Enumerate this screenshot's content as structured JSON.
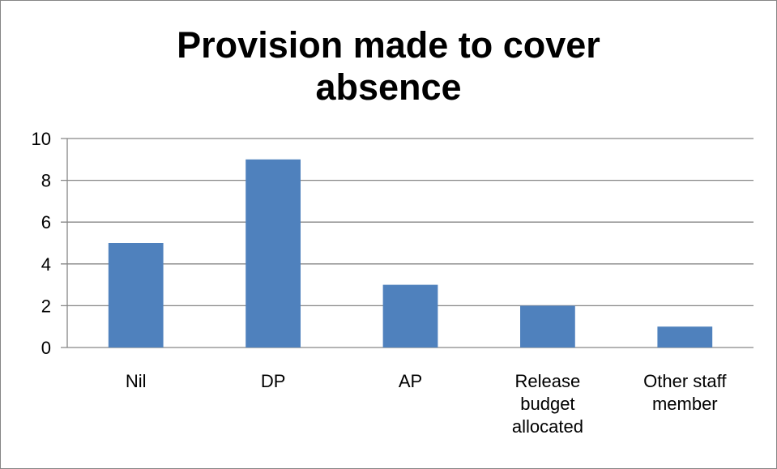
{
  "chart_data": {
    "type": "bar",
    "title": "Provision made to cover\nabsence",
    "categories": [
      "Nil",
      "DP",
      "AP",
      "Release budget allocated",
      "Other staff member"
    ],
    "category_label_lines": [
      [
        "Nil"
      ],
      [
        "DP"
      ],
      [
        "AP"
      ],
      [
        "Release",
        "budget",
        "allocated"
      ],
      [
        "Other staff",
        "member"
      ]
    ],
    "values": [
      5,
      9,
      3,
      2,
      1
    ],
    "ylim": [
      0,
      10
    ],
    "yticks": [
      0,
      2,
      4,
      6,
      8,
      10
    ],
    "xlabel": "",
    "ylabel": "",
    "grid": true,
    "legend": "none",
    "bar_color": "#4f81bd",
    "gridline_color": "#868686"
  }
}
